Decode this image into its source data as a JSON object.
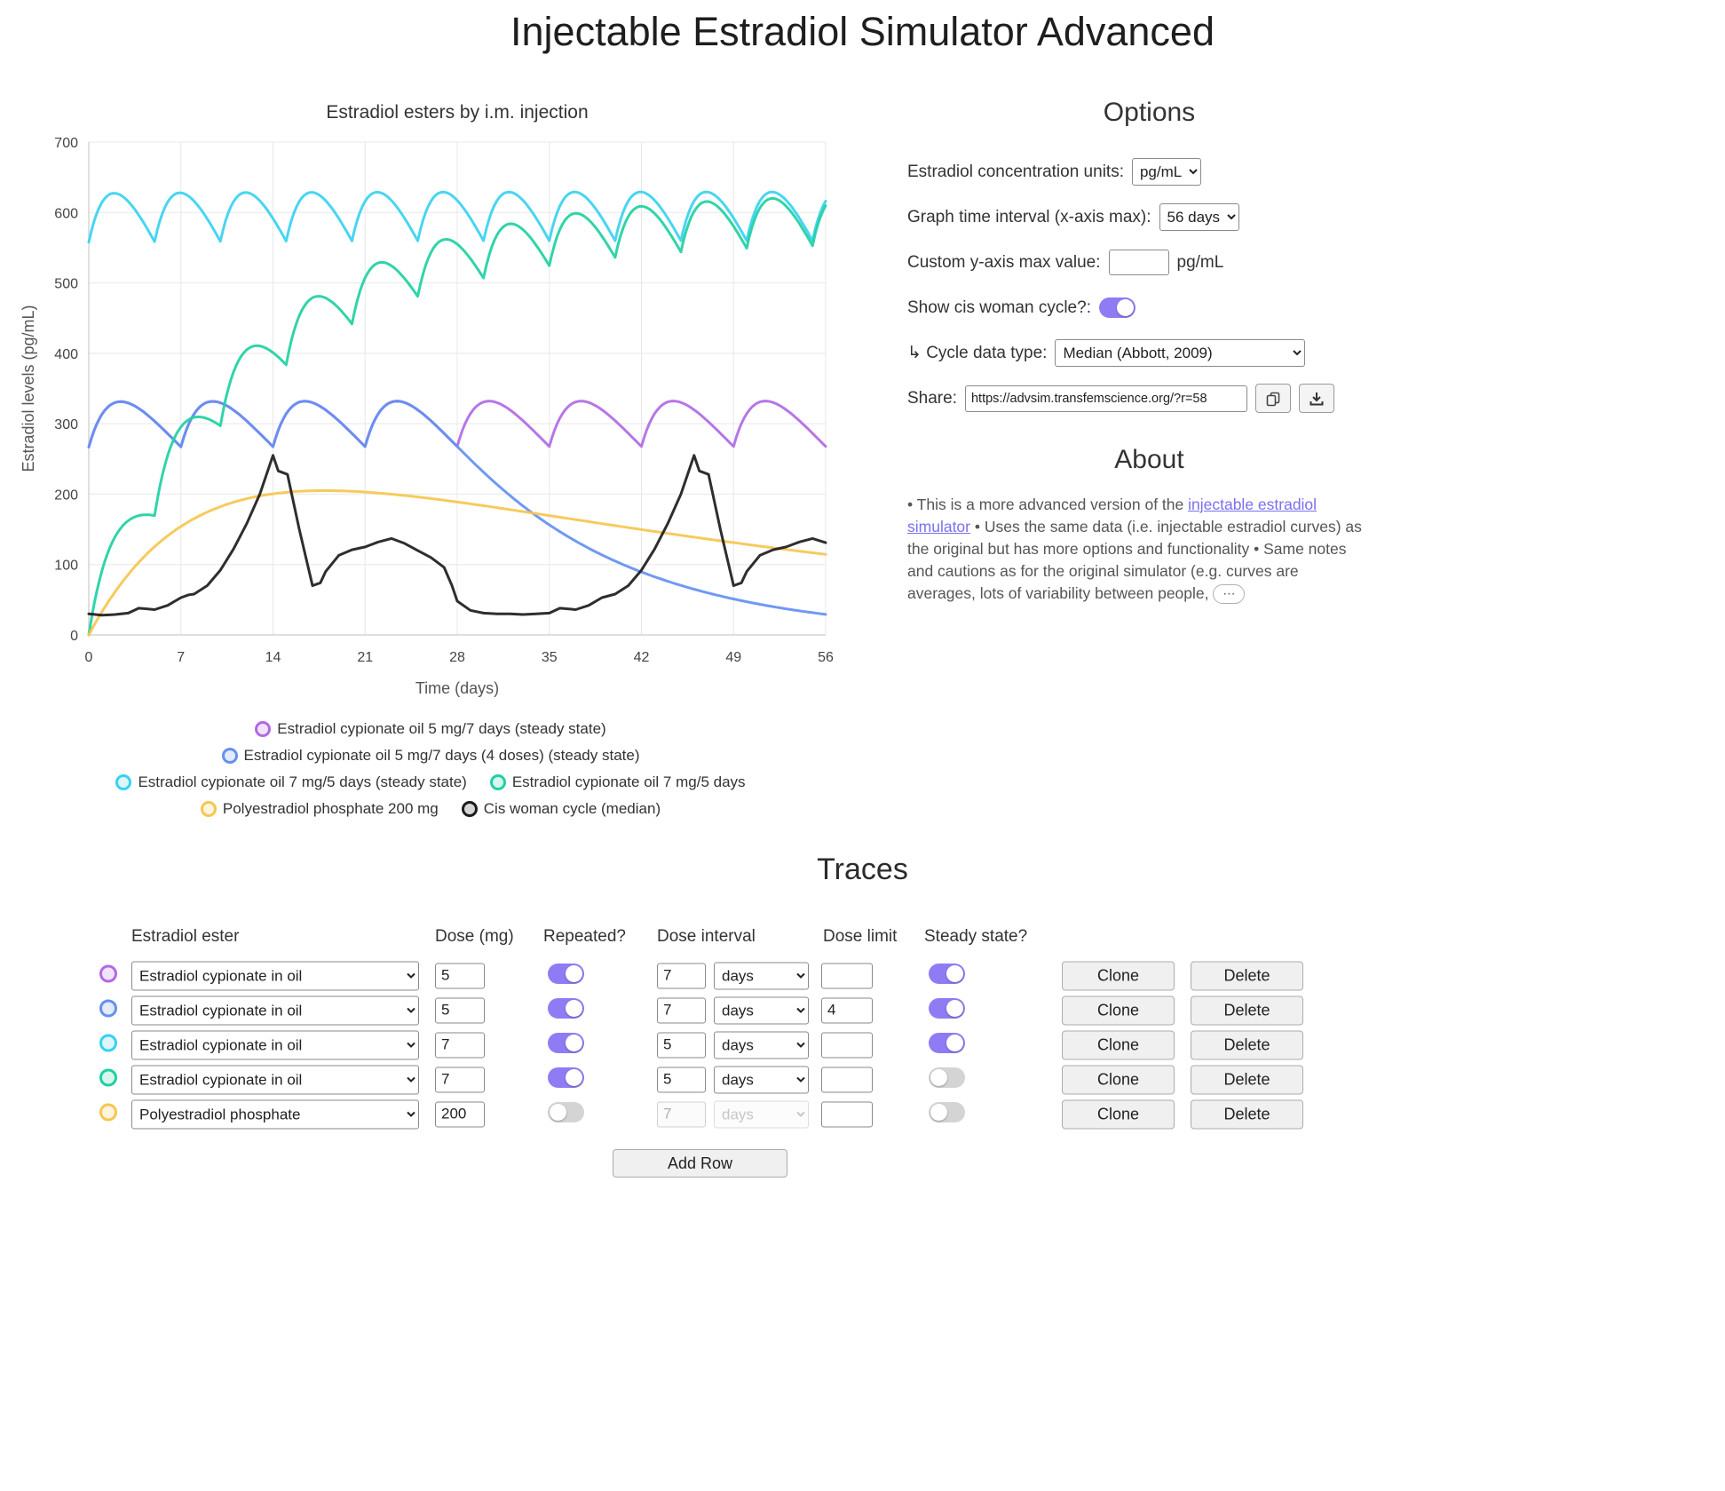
{
  "title": "Injectable Estradiol Simulator Advanced",
  "chart_data": {
    "type": "line",
    "title": "Estradiol esters by i.m. injection",
    "xlabel": "Time (days)",
    "ylabel": "Estradiol levels (pg/mL)",
    "xlim": [
      0,
      56
    ],
    "ylim": [
      0,
      700
    ],
    "xticks": [
      0,
      7,
      14,
      21,
      28,
      35,
      42,
      49,
      56
    ],
    "yticks": [
      0,
      100,
      200,
      300,
      400,
      500,
      600,
      700
    ],
    "grid": true,
    "legend_position": "bottom",
    "legend_rows": [
      [
        0
      ],
      [
        1
      ],
      [
        2,
        3
      ],
      [
        4,
        5
      ]
    ],
    "series": [
      {
        "name": "Estradiol cypionate oil 5 mg/7 days (steady state)",
        "color": "#b16ae5",
        "kind": "pk",
        "amp": 205.8,
        "ka": 0.5,
        "ke": 0.08,
        "interval": 7,
        "first_dose": -70,
        "last_dose": 56,
        "steady_state_range": [
          265,
          335
        ]
      },
      {
        "name": "Estradiol cypionate oil 5 mg/7 days (4 doses) (steady state)",
        "color": "#6490f1",
        "kind": "pk",
        "amp": 205.8,
        "ka": 0.5,
        "ke": 0.08,
        "interval": 7,
        "first_dose": -70,
        "last_dose": 21,
        "steady_state_range": [
          265,
          335
        ]
      },
      {
        "name": "Estradiol cypionate oil 7 mg/5 days (steady state)",
        "color": "#38d1f1",
        "kind": "pk",
        "amp": 288.1,
        "ka": 0.5,
        "ke": 0.08,
        "interval": 5,
        "first_dose": -70,
        "last_dose": 56,
        "steady_state_range": [
          560,
          630
        ]
      },
      {
        "name": "Estradiol cypionate oil 7 mg/5 days",
        "color": "#20d0a2",
        "kind": "pk",
        "amp": 288.1,
        "ka": 0.5,
        "ke": 0.08,
        "interval": 5,
        "first_dose": 0,
        "last_dose": 56
      },
      {
        "name": "Polyestradiol phosphate 200 mg",
        "color": "#f6c64f",
        "kind": "pk",
        "amp": 352,
        "ka": 0.12,
        "ke": 0.02,
        "interval": 0,
        "first_dose": 0,
        "last_dose": 0,
        "peak": [
          18,
          205
        ]
      },
      {
        "name": "Cis woman cycle (median)",
        "color": "#1c1c1c",
        "kind": "points",
        "points": [
          [
            0,
            30
          ],
          [
            1,
            28
          ],
          [
            2,
            29
          ],
          [
            3,
            31
          ],
          [
            3.8,
            38
          ],
          [
            4.5,
            37
          ],
          [
            5,
            36
          ],
          [
            6,
            42
          ],
          [
            7,
            53
          ],
          [
            7.6,
            57
          ],
          [
            8,
            58
          ],
          [
            9,
            70
          ],
          [
            10,
            92
          ],
          [
            11,
            122
          ],
          [
            12,
            158
          ],
          [
            13,
            200
          ],
          [
            14,
            255
          ],
          [
            14.4,
            233
          ],
          [
            15.1,
            228
          ],
          [
            16,
            150
          ],
          [
            17,
            70
          ],
          [
            17.6,
            74
          ],
          [
            18,
            90
          ],
          [
            19,
            113
          ],
          [
            20,
            121
          ],
          [
            21,
            125
          ],
          [
            22,
            132
          ],
          [
            23,
            137
          ],
          [
            24,
            130
          ],
          [
            25,
            120
          ],
          [
            26,
            110
          ],
          [
            27,
            96
          ],
          [
            27.6,
            70
          ],
          [
            28,
            48
          ],
          [
            29,
            35
          ],
          [
            30,
            31
          ],
          [
            31,
            30
          ],
          [
            32,
            30
          ],
          [
            33,
            29
          ],
          [
            34,
            30
          ],
          [
            35,
            31
          ],
          [
            35.8,
            38
          ],
          [
            36.5,
            37
          ],
          [
            37,
            36
          ],
          [
            38,
            42
          ],
          [
            39,
            53
          ],
          [
            40,
            58
          ],
          [
            41,
            70
          ],
          [
            42,
            92
          ],
          [
            43,
            122
          ],
          [
            44,
            158
          ],
          [
            45,
            200
          ],
          [
            46,
            255
          ],
          [
            46.4,
            233
          ],
          [
            47.1,
            228
          ],
          [
            48,
            150
          ],
          [
            49,
            70
          ],
          [
            49.6,
            74
          ],
          [
            50,
            90
          ],
          [
            51,
            113
          ],
          [
            52,
            121
          ],
          [
            53,
            125
          ],
          [
            54,
            132
          ],
          [
            55,
            137
          ],
          [
            56,
            131
          ]
        ]
      }
    ]
  },
  "options": {
    "heading": "Options",
    "units_label": "Estradiol concentration units:",
    "units_value": "pg/mL",
    "interval_label": "Graph time interval (x-axis max):",
    "interval_value": "56 days",
    "ymax_label": "Custom y-axis max value:",
    "ymax_value": "",
    "ymax_unit": "pg/mL",
    "cycle_label": "Show cis woman cycle?:",
    "cycle_on": true,
    "cycle_type_label": "↳ Cycle data type:",
    "cycle_type_value": "Median (Abbott, 2009)",
    "share_label": "Share:",
    "share_value": "https://advsim.transfemscience.org/?r=58"
  },
  "about": {
    "heading": "About",
    "t1": "• This is a more advanced version of the ",
    "link": "injectable estradiol simulator",
    "t2": " • Uses the same data (i.e. injectable estradiol curves) as the original but has more options and functionality • Same notes and cautions as for the original simulator (e.g. curves are averages, lots of variability between people, ",
    "more": "⋯"
  },
  "traces": {
    "heading": "Traces",
    "columns": [
      "Estradiol ester",
      "Dose (mg)",
      "Repeated?",
      "Dose interval",
      "Dose limit",
      "Steady state?"
    ],
    "clone_label": "Clone",
    "delete_label": "Delete",
    "add_row_label": "Add Row",
    "rows": [
      {
        "color": "#b16ae5",
        "ester": "Estradiol cypionate in oil",
        "dose": "5",
        "repeated": true,
        "interval": "7",
        "interval_unit": "days",
        "dose_limit": "",
        "steady_state": true,
        "interval_disabled": false
      },
      {
        "color": "#6490f1",
        "ester": "Estradiol cypionate in oil",
        "dose": "5",
        "repeated": true,
        "interval": "7",
        "interval_unit": "days",
        "dose_limit": "4",
        "steady_state": true,
        "interval_disabled": false
      },
      {
        "color": "#38d1f1",
        "ester": "Estradiol cypionate in oil",
        "dose": "7",
        "repeated": true,
        "interval": "5",
        "interval_unit": "days",
        "dose_limit": "",
        "steady_state": true,
        "interval_disabled": false
      },
      {
        "color": "#20d0a2",
        "ester": "Estradiol cypionate in oil",
        "dose": "7",
        "repeated": true,
        "interval": "5",
        "interval_unit": "days",
        "dose_limit": "",
        "steady_state": false,
        "interval_disabled": false
      },
      {
        "color": "#f6c64f",
        "ester": "Polyestradiol phosphate",
        "dose": "200",
        "repeated": false,
        "interval": "7",
        "interval_unit": "days",
        "dose_limit": "",
        "steady_state": false,
        "interval_disabled": true
      }
    ]
  }
}
